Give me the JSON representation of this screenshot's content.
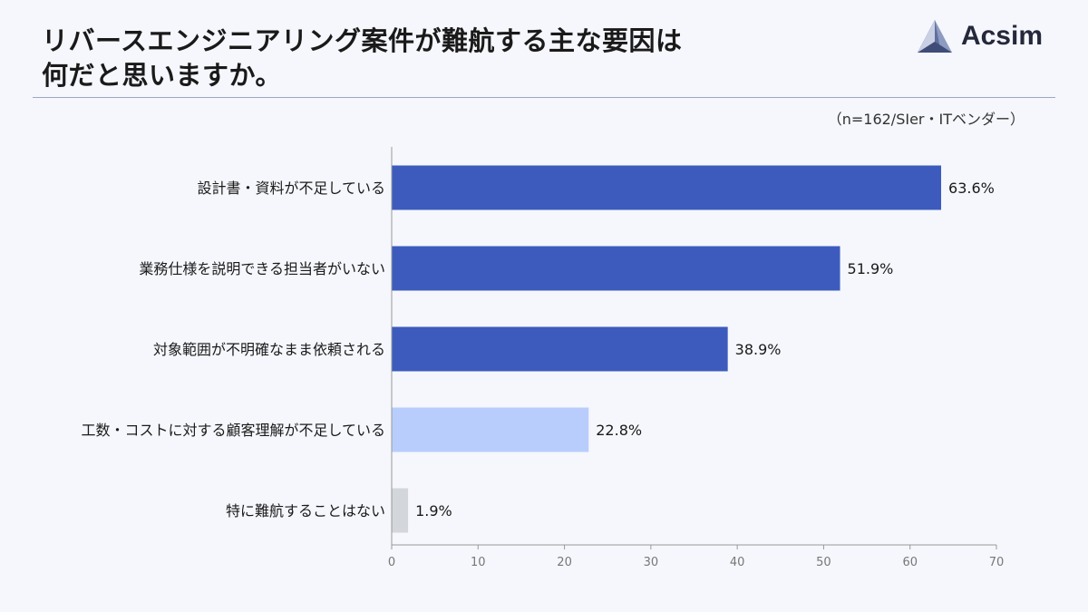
{
  "header": {
    "title_line1": "リバースエンジニアリング案件が難航する主な要因は",
    "title_line2": "何だと思いますか。",
    "brand": "Acsim",
    "sample_note": "（n=162/SIer・ITベンダー）"
  },
  "chart_data": {
    "type": "bar",
    "orientation": "horizontal",
    "title": "リバースエンジニアリング案件が難航する主な要因は何だと思いますか。",
    "categories": [
      "設計書・資料が不足している",
      "業務仕様を説明できる担当者がいない",
      "対象範囲が不明確なまま依頼される",
      "工数・コストに対する顧客理解が不足している",
      "特に難航することはない"
    ],
    "values": [
      63.6,
      51.9,
      38.9,
      22.8,
      1.9
    ],
    "value_labels": [
      "63.6%",
      "51.9%",
      "38.9%",
      "22.8%",
      "1.9%"
    ],
    "bar_colors": [
      "#3d5bbd",
      "#3d5bbd",
      "#3d5bbd",
      "#b8cdfb",
      "#d3d6da"
    ],
    "xlim": [
      0,
      70
    ],
    "xticks": [
      0,
      10,
      20,
      30,
      40,
      50,
      60,
      70
    ],
    "xtick_labels": [
      "0",
      "10",
      "20",
      "30",
      "40",
      "50",
      "60",
      "70"
    ],
    "xlabel": "",
    "ylabel": "",
    "grid": false,
    "legend": "none"
  }
}
